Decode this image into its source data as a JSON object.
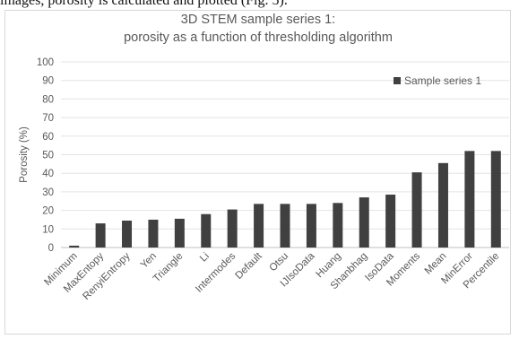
{
  "context_text": "images, porosity is calculated and plotted (Fig. 5).",
  "chart_data": {
    "type": "bar",
    "title": [
      "3D STEM sample series 1:",
      "porosity as a function of thresholding algorithm"
    ],
    "xlabel": "",
    "ylabel": "Porosity (%)",
    "ylim": [
      0,
      100
    ],
    "yticks": [
      0,
      10,
      20,
      30,
      40,
      50,
      60,
      70,
      80,
      90,
      100
    ],
    "grid": true,
    "legend_position": "top-right",
    "categories": [
      "Minimum",
      "MaxEntopy",
      "RenyiEntropy",
      "Yen",
      "Triangle",
      "Li",
      "Intermodes",
      "Default",
      "Otsu",
      "IJIsoData",
      "Huang",
      "Shanbhag",
      "IsoData",
      "Moments",
      "Mean",
      "MinError",
      "Percentile"
    ],
    "series": [
      {
        "name": "Sample series 1",
        "color": "#404040",
        "values": [
          1,
          13,
          14.5,
          15,
          15.5,
          18,
          20.5,
          23.5,
          23.5,
          23.5,
          24,
          27,
          28.5,
          40.5,
          45.5,
          52,
          52
        ]
      }
    ]
  }
}
